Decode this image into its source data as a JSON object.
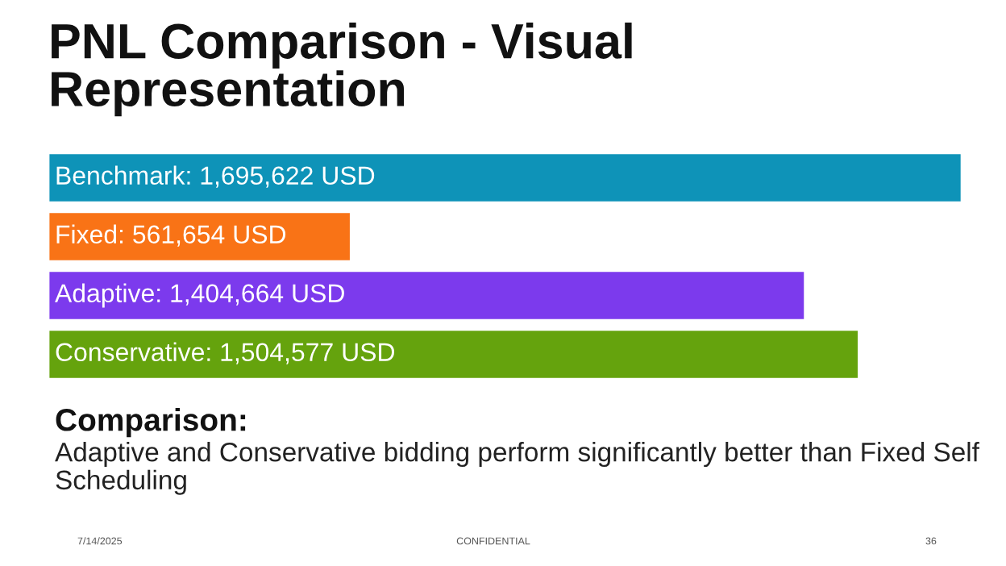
{
  "chart_data": {
    "type": "bar",
    "orientation": "horizontal",
    "title": "PNL Comparison - Visual\nRepresentation",
    "categories": [
      null,
      null,
      null,
      null
    ],
    "values": [
      1695622,
      561654,
      1404664,
      1504577
    ],
    "colors": [
      "#0e93b8",
      "#f97316",
      "#7c3aed",
      "#65a30d"
    ],
    "value_labels": [
      "Benchmark: 1,695,622 USD",
      "Fixed: 561,654 USD",
      "Adaptive: 1,404,664 USD",
      "Conservative: 1,504,577 USD"
    ],
    "xlim": [
      0,
      1700000
    ],
    "tick_labels": false,
    "grid": false,
    "legend": false,
    "annotations": [
      "Comparison:",
      "Adaptive and Conservative bidding perform significantly better than Fixed Self Scheduling",
      "7/14/2025",
      "CONFIDENTIAL",
      "36"
    ]
  }
}
